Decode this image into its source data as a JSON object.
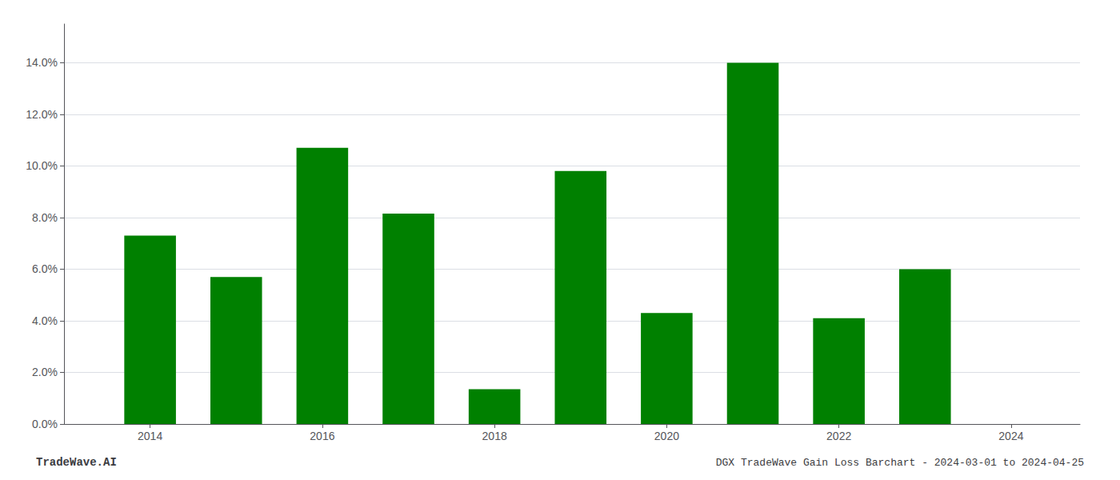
{
  "chart_data": {
    "type": "bar",
    "title": "DGX TradeWave Gain Loss Barchart - 2024-03-01 to 2024-04-25",
    "annotations": [
      "TradeWave.AI"
    ],
    "x": [
      2014,
      2015,
      2016,
      2017,
      2018,
      2019,
      2020,
      2021,
      2022,
      2023,
      2024
    ],
    "values": [
      0.073,
      0.057,
      0.107,
      0.0815,
      0.0135,
      0.098,
      0.043,
      0.14,
      0.041,
      0.06,
      null
    ],
    "color": "#008000",
    "xlim": [
      2013.0,
      2024.8
    ],
    "xticks": [
      2014,
      2016,
      2018,
      2020,
      2022,
      2024
    ],
    "ylim": [
      0,
      0.155
    ],
    "yticks": [
      {
        "value": 0.0,
        "label": "0.0%"
      },
      {
        "value": 0.02,
        "label": "2.0%"
      },
      {
        "value": 0.04,
        "label": "4.0%"
      },
      {
        "value": 0.06,
        "label": "6.0%"
      },
      {
        "value": 0.08,
        "label": "8.0%"
      },
      {
        "value": 0.1,
        "label": "10.0%"
      },
      {
        "value": 0.12,
        "label": "12.0%"
      },
      {
        "value": 0.14,
        "label": "14.0%"
      }
    ],
    "grid": true
  }
}
